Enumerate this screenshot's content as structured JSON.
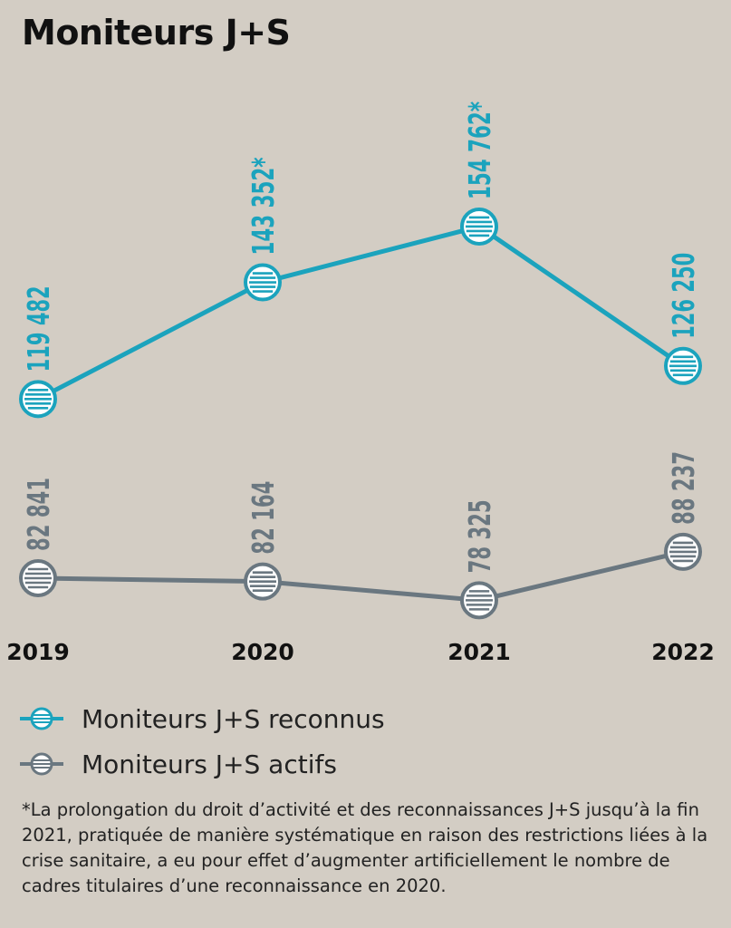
{
  "chart_data": {
    "type": "line",
    "title": "Moniteurs J+S",
    "categories": [
      "2019",
      "2020",
      "2021",
      "2022"
    ],
    "series": [
      {
        "name": "Moniteurs J+S reconnus",
        "color": "#1ba3bd",
        "values": [
          119482,
          143352,
          154762,
          126250
        ],
        "labels": [
          "119 482",
          "143 352*",
          "154 762*",
          "126 250"
        ]
      },
      {
        "name": "Moniteurs J+S actifs",
        "color": "#6a7780",
        "values": [
          82841,
          82164,
          78325,
          88237
        ],
        "labels": [
          "82 841",
          "82 164",
          "78 325",
          "88 237"
        ]
      }
    ],
    "footnote": "*La prolongation du droit d’activité et des reconnaissances J+S jusqu’à la fin 2021, pratiquée de manière systématique en raison des restrictions liées à la crise sanitaire, a eu pour effet d’augmenter artificiellement le nombre de cadres titulaires d’une reconnaissance en 2020."
  }
}
